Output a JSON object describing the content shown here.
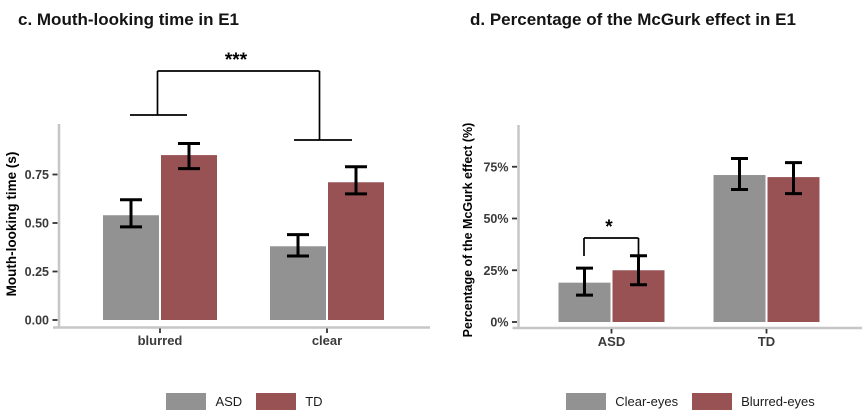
{
  "colors": {
    "group_gray": "#929292",
    "group_red": "#985254",
    "axis_line": "#c6c6c6",
    "tick_mark": "#333333",
    "tick_text": "#3a3a3a",
    "error_bar": "#000000",
    "significance": "#000000"
  },
  "chart_data": [
    {
      "id": "c",
      "type": "bar",
      "title": "c. Mouth-looking time in E1",
      "xlabel": "",
      "ylabel": "Mouth-looking time (s)",
      "categories": [
        "blurred",
        "clear"
      ],
      "series": [
        {
          "name": "ASD",
          "color": "#929292",
          "values": [
            0.54,
            0.38
          ],
          "error_low": [
            0.48,
            0.33
          ],
          "error_high": [
            0.62,
            0.44
          ]
        },
        {
          "name": "TD",
          "color": "#985254",
          "values": [
            0.85,
            0.71
          ],
          "error_low": [
            0.78,
            0.65
          ],
          "error_high": [
            0.91,
            0.79
          ]
        }
      ],
      "yticks": [
        0,
        0.25,
        0.5,
        0.75
      ],
      "ytick_labels": [
        "0.00",
        "0.25",
        "0.50",
        "0.75"
      ],
      "ylim": [
        0,
        1.05
      ],
      "grid": false,
      "legend_position": "bottom",
      "significance": {
        "label": "***",
        "between": [
          "blurred",
          "clear"
        ]
      }
    },
    {
      "id": "d",
      "type": "bar",
      "title": "d. Percentage of the McGurk effect in E1",
      "xlabel": "",
      "ylabel": "Percentage of the McGurk effect (%)",
      "categories": [
        "ASD",
        "TD"
      ],
      "series": [
        {
          "name": "Clear-eyes",
          "color": "#929292",
          "values": [
            19,
            71
          ],
          "error_low": [
            13,
            64
          ],
          "error_high": [
            26,
            79
          ]
        },
        {
          "name": "Blurred-eyes",
          "color": "#985254",
          "values": [
            25,
            70
          ],
          "error_low": [
            18,
            62
          ],
          "error_high": [
            32,
            77
          ]
        }
      ],
      "yticks": [
        0,
        25,
        50,
        75
      ],
      "ytick_labels": [
        "0%",
        "25%",
        "50%",
        "75%"
      ],
      "ylim": [
        0,
        95
      ],
      "grid": false,
      "legend_position": "bottom",
      "significance": {
        "label": "*",
        "between": [
          "Clear-eyes",
          "Blurred-eyes"
        ],
        "within": "ASD"
      }
    }
  ]
}
